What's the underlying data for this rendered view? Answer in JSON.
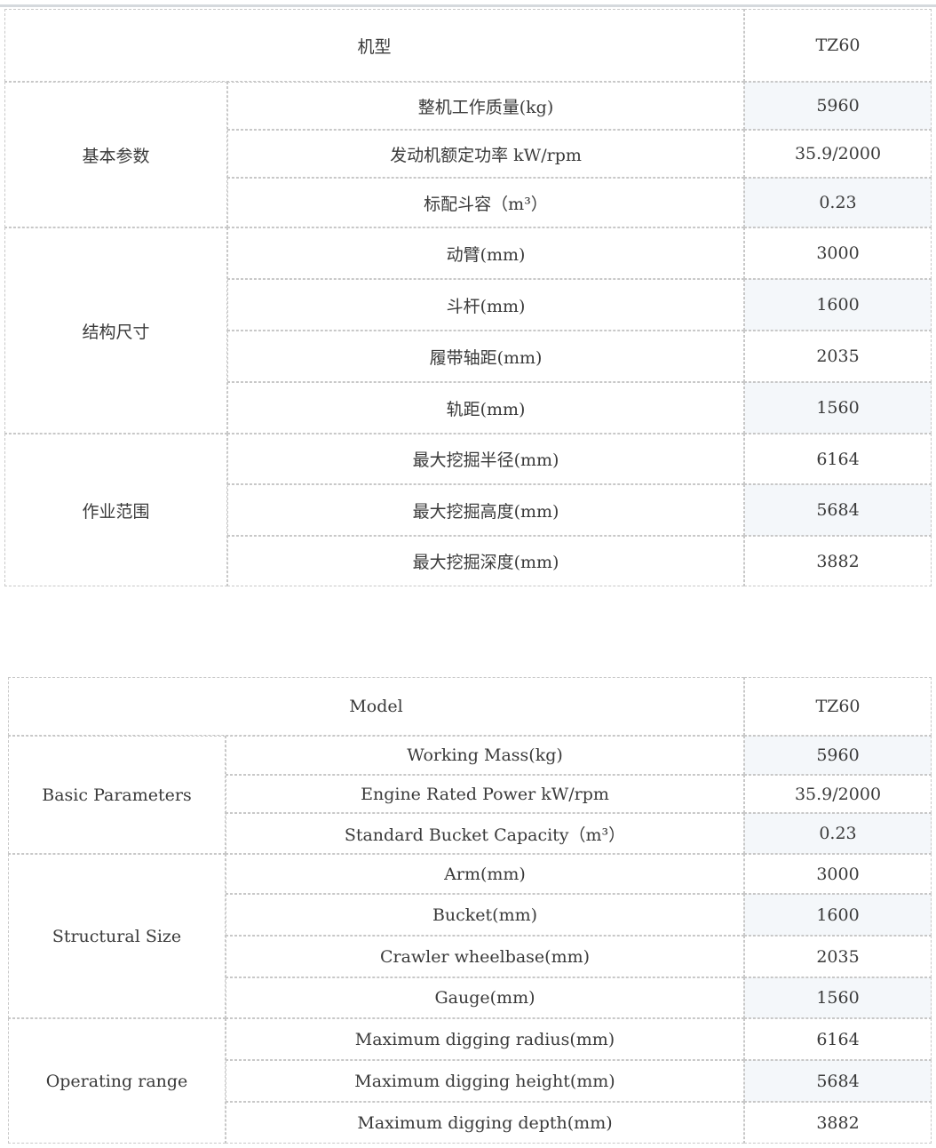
{
  "tables": [
    {
      "model_label": "机型",
      "model_value": "TZ60",
      "groups": [
        {
          "name": "基本参数",
          "rows": [
            [
              "整机工作质量(kg)",
              "5960"
            ],
            [
              "发动机额定功率 kW/rpm",
              "35.9/2000"
            ],
            [
              "标配斗容（m³）",
              "0.23"
            ]
          ]
        },
        {
          "name": "结构尺寸",
          "rows": [
            [
              "动臂(mm)",
              "3000"
            ],
            [
              "斗杆(mm)",
              "1600"
            ],
            [
              "履带轴距(mm)",
              "2035"
            ],
            [
              "轨距(mm)",
              "1560"
            ]
          ]
        },
        {
          "name": "作业范围",
          "rows": [
            [
              "最大挖掘半径(mm)",
              "6164"
            ],
            [
              "最大挖掘高度(mm)",
              "5684"
            ],
            [
              "最大挖掘深度(mm)",
              "3882"
            ]
          ]
        }
      ]
    },
    {
      "model_label": "Model",
      "model_value": "TZ60",
      "groups": [
        {
          "name": "Basic Parameters",
          "rows": [
            [
              "Working Mass(kg)",
              "5960"
            ],
            [
              "Engine Rated Power kW/rpm",
              "35.9/2000"
            ],
            [
              "Standard Bucket Capacity（m³）",
              "0.23"
            ]
          ]
        },
        {
          "name": "Structural Size",
          "rows": [
            [
              "Arm(mm)",
              "3000"
            ],
            [
              "Bucket(mm)",
              "1600"
            ],
            [
              "Crawler wheelbase(mm)",
              "2035"
            ],
            [
              "Gauge(mm)",
              "1560"
            ]
          ]
        },
        {
          "name": "Operating range",
          "rows": [
            [
              "Maximum digging radius(mm)",
              "6164"
            ],
            [
              "Maximum digging height(mm)",
              "5684"
            ],
            [
              "Maximum digging depth(mm)",
              "3882"
            ]
          ]
        }
      ]
    }
  ],
  "colors": {
    "shade": "#f4f7fa",
    "border": "#111111"
  }
}
